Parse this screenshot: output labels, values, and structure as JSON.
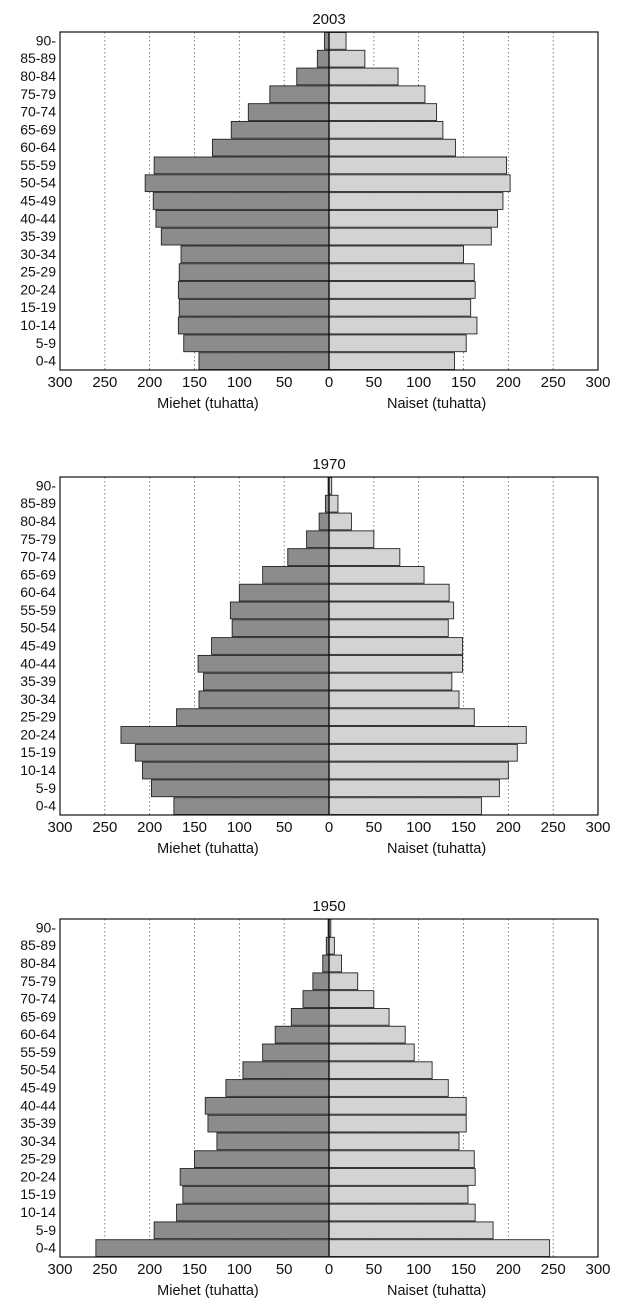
{
  "chart_data": [
    {
      "type": "bar",
      "orientation": "horizontal",
      "layout": "population-pyramid",
      "title": "2003",
      "categories": [
        "90-",
        "85-89",
        "80-84",
        "75-79",
        "70-74",
        "65-69",
        "60-64",
        "55-59",
        "50-54",
        "45-49",
        "40-44",
        "35-39",
        "30-34",
        "25-29",
        "20-24",
        "15-19",
        "10-14",
        "5-9",
        "0-4"
      ],
      "series": [
        {
          "name": "Miehet (tuhatta)",
          "side": "left",
          "color": "#8c8c8c",
          "values": [
            5,
            13,
            36,
            66,
            90,
            109,
            130,
            195,
            205,
            196,
            193,
            187,
            165,
            167,
            168,
            167,
            168,
            162,
            145
          ]
        },
        {
          "name": "Naiset (tuhatta)",
          "side": "right",
          "color": "#d3d3d3",
          "values": [
            19,
            40,
            77,
            107,
            120,
            127,
            141,
            198,
            202,
            194,
            188,
            181,
            150,
            162,
            163,
            158,
            165,
            153,
            140
          ]
        }
      ],
      "xticks": [
        "300",
        "250",
        "200",
        "150",
        "100",
        "50",
        "0",
        "50",
        "100",
        "150",
        "200",
        "250",
        "300"
      ],
      "xlim": [
        -300,
        300
      ],
      "grid": "vertical dotted"
    },
    {
      "type": "bar",
      "orientation": "horizontal",
      "layout": "population-pyramid",
      "title": "1970",
      "categories": [
        "90-",
        "85-89",
        "80-84",
        "75-79",
        "70-74",
        "65-69",
        "60-64",
        "55-59",
        "50-54",
        "45-49",
        "40-44",
        "35-39",
        "30-34",
        "25-29",
        "20-24",
        "15-19",
        "10-14",
        "5-9",
        "0-4"
      ],
      "series": [
        {
          "name": "Miehet (tuhatta)",
          "side": "left",
          "color": "#8c8c8c",
          "values": [
            1,
            4,
            11,
            25,
            46,
            74,
            100,
            110,
            108,
            131,
            146,
            140,
            145,
            170,
            232,
            216,
            208,
            198,
            173
          ]
        },
        {
          "name": "Naiset (tuhatta)",
          "side": "right",
          "color": "#d3d3d3",
          "values": [
            3,
            10,
            25,
            50,
            79,
            106,
            134,
            139,
            133,
            149,
            149,
            137,
            145,
            162,
            220,
            210,
            200,
            190,
            170
          ]
        }
      ],
      "xticks": [
        "300",
        "250",
        "200",
        "150",
        "100",
        "50",
        "0",
        "50",
        "100",
        "150",
        "200",
        "250",
        "300"
      ],
      "xlim": [
        -300,
        300
      ],
      "grid": "vertical dotted"
    },
    {
      "type": "bar",
      "orientation": "horizontal",
      "layout": "population-pyramid",
      "title": "1950",
      "categories": [
        "90-",
        "85-89",
        "80-84",
        "75-79",
        "70-74",
        "65-69",
        "60-64",
        "55-59",
        "50-54",
        "45-49",
        "40-44",
        "35-39",
        "30-34",
        "25-29",
        "20-24",
        "15-19",
        "10-14",
        "5-9",
        "0-4"
      ],
      "series": [
        {
          "name": "Miehet (tuhatta)",
          "side": "left",
          "color": "#8c8c8c",
          "values": [
            1,
            3,
            7,
            18,
            29,
            42,
            60,
            74,
            96,
            115,
            138,
            135,
            125,
            150,
            166,
            163,
            170,
            195,
            260
          ]
        },
        {
          "name": "Naiset (tuhatta)",
          "side": "right",
          "color": "#d3d3d3",
          "values": [
            2,
            6,
            14,
            32,
            50,
            67,
            85,
            95,
            115,
            133,
            153,
            153,
            145,
            162,
            163,
            155,
            163,
            183,
            246
          ]
        }
      ],
      "xticks": [
        "300",
        "250",
        "200",
        "150",
        "100",
        "50",
        "0",
        "50",
        "100",
        "150",
        "200",
        "250",
        "300"
      ],
      "xlim": [
        -300,
        300
      ],
      "grid": "vertical dotted"
    }
  ]
}
